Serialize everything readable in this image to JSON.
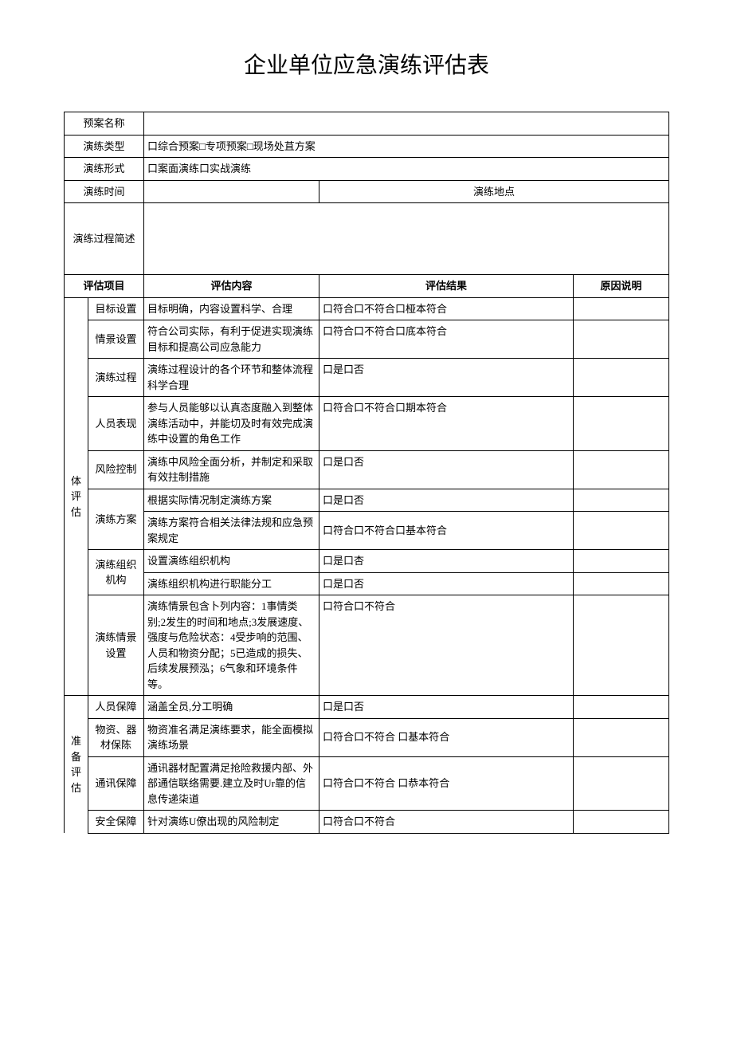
{
  "title": "企业单位应急演练评估表",
  "headers": {
    "plan_name": "预案名称",
    "drill_type": "演练类型",
    "drill_type_value": "口综合预案□专项预案□现场处苴方案",
    "drill_form": "演练形式",
    "drill_form_value": "口案面演练口实战演练",
    "drill_time": "演练时间",
    "drill_location": "演练地点",
    "drill_process_desc": "演练过程简述",
    "eval_item": "评估项目",
    "eval_content": "评估内容",
    "eval_result": "评估结果",
    "reason": "原因说明"
  },
  "groups": {
    "body_eval": "体评估",
    "prep_eval": "准备评估"
  },
  "rows": {
    "r1": {
      "item": "目标设置",
      "content": "目标明确，内容设置科学、合理",
      "result": "口符合口不符合口桠本符合"
    },
    "r2": {
      "item": "情景设置",
      "content": "符合公司实际，有利于促进实现演练目标和提高公司应急能力",
      "result": "口符合口不符合口底本符合"
    },
    "r3": {
      "item": "演练过程",
      "content": "演练过程设计的各个环节和整体流程科学合理",
      "result": "口是口否"
    },
    "r4": {
      "item": "人员表现",
      "content": "参与人员能够以认真态度融入到整体演练活动中，并能切及时有效完成演练中设置的角色工作",
      "result": "口符合口不符合口期本符合"
    },
    "r5": {
      "item": "风险控制",
      "content": "演练中风险全面分析，并制定和采取有效拄制措施",
      "result": "口是口否"
    },
    "r6": {
      "item": "演练方案",
      "content1": "根据实际情况制定演练方案",
      "result1": "口是口否",
      "content2": "演练方案符合相关法律法规和应急预案规定",
      "result2": "口符合口不符合口基本符合"
    },
    "r7": {
      "item": "演练组织机构",
      "content1": "设置演练组织机构",
      "result1": "口是口杏",
      "content2": "演练组织机构进行职能分工",
      "result2": "口是口否"
    },
    "r8": {
      "item": "演练情景设置",
      "content": "演练情景包含卜列内容：1事情类别;2发生的时间和地点;3发展速度、强度与危险状态：4受步响的范围、人员和物资分配；5已造成的损失、后续发展预泓；6气象和环境条件等。",
      "result": "口符合口不符合"
    },
    "r9": {
      "item": "人员保障",
      "content": "涵盖全员,分工明确",
      "result": "口是口否"
    },
    "r10": {
      "item": "物资、器材保陈",
      "content": "物资准名满足演练要求，能全面模拟演练场景",
      "result": "口符合口不符合 口基本符合"
    },
    "r11": {
      "item": "通讯保障",
      "content": "通讯器材配置满足抢险救援内部、外部通信联络需要.建立及时Ur靠的信息传递柒道",
      "result": "口符合口不符合 口恭本符合"
    },
    "r12": {
      "item": "安全保障",
      "content": "针对演练U僚出现的风险制定",
      "result": "口符合口不符合"
    }
  }
}
